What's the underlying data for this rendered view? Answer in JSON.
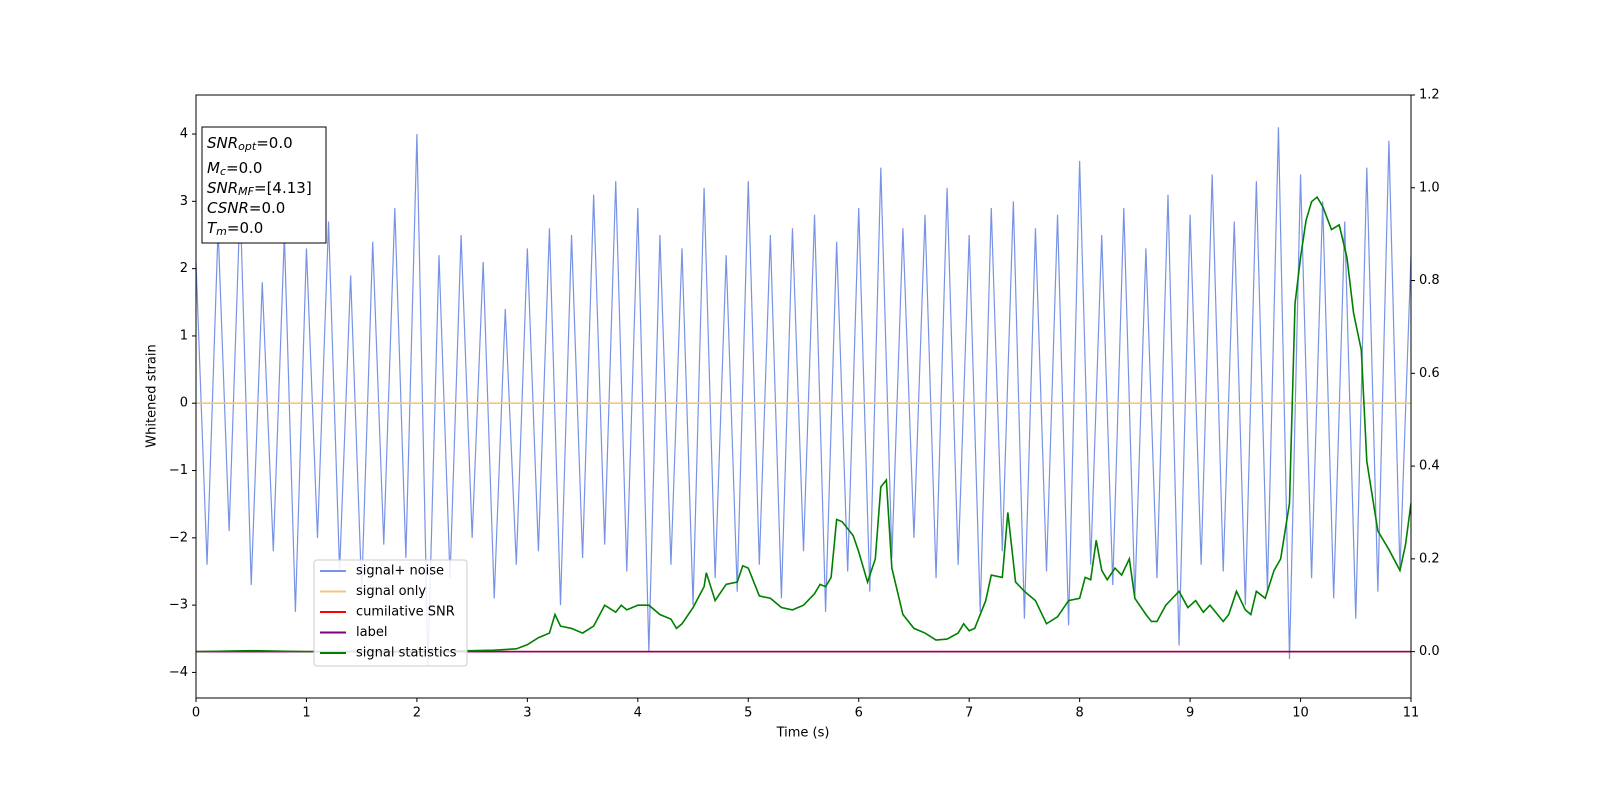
{
  "chart_data": {
    "type": "line",
    "xlabel": "Time (s)",
    "ylabel": "Whitened strain",
    "xlim": [
      0,
      11
    ],
    "ylim": [
      -4.38,
      4.58
    ],
    "y2lim": [
      -0.1,
      1.2
    ],
    "xticks": [
      0,
      1,
      2,
      3,
      4,
      5,
      6,
      7,
      8,
      9,
      10,
      11
    ],
    "yticks": [
      {
        "value": -4,
        "label": "−4"
      },
      {
        "value": -3,
        "label": "−3"
      },
      {
        "value": -2,
        "label": "−2"
      },
      {
        "value": -1,
        "label": "−1"
      },
      0,
      1,
      2,
      3,
      4
    ],
    "y2ticks": [
      {
        "value": 0,
        "label": "0.0"
      },
      {
        "value": 0.2,
        "label": "0.2"
      },
      {
        "value": 0.4,
        "label": "0.4"
      },
      {
        "value": 0.6,
        "label": "0.6"
      },
      {
        "value": 0.8,
        "label": "0.8"
      },
      {
        "value": 1.0,
        "label": "1.0"
      },
      {
        "value": 1.2,
        "label": "1.2"
      }
    ],
    "annotations": [
      {
        "main": "SNR",
        "sub": "opt",
        "rest": "=0.0"
      },
      {
        "main": "M",
        "sub": "c",
        "rest": "=0.0"
      },
      {
        "main": "SNR",
        "sub": "MF",
        "rest": "=[4.13]"
      },
      {
        "main": "CSNR",
        "rest": "=0.0"
      },
      {
        "main": "T",
        "sub": "m",
        "rest": "=0.0"
      }
    ],
    "series": [
      {
        "name": "signal+ noise",
        "color": "#7893e6",
        "x": [
          0,
          0.1,
          0.2,
          0.3,
          0.4,
          0.5,
          0.6,
          0.7,
          0.8,
          0.9,
          1,
          1.1,
          1.2,
          1.3,
          1.4,
          1.5,
          1.6,
          1.7,
          1.8,
          1.9,
          2,
          2.1,
          2.2,
          2.3,
          2.4,
          2.5,
          2.6,
          2.7,
          2.8,
          2.9,
          3,
          3.1,
          3.2,
          3.3,
          3.4,
          3.5,
          3.6,
          3.7,
          3.8,
          3.9,
          4,
          4.1,
          4.2,
          4.3,
          4.4,
          4.5,
          4.6,
          4.7,
          4.8,
          4.9,
          5,
          5.1,
          5.2,
          5.3,
          5.4,
          5.5,
          5.6,
          5.7,
          5.8,
          5.9,
          6,
          6.1,
          6.2,
          6.3,
          6.4,
          6.5,
          6.6,
          6.7,
          6.8,
          6.9,
          7,
          7.1,
          7.2,
          7.3,
          7.4,
          7.5,
          7.6,
          7.7,
          7.8,
          7.9,
          8,
          8.1,
          8.2,
          8.3,
          8.4,
          8.5,
          8.6,
          8.7,
          8.8,
          8.9,
          9,
          9.1,
          9.2,
          9.3,
          9.4,
          9.5,
          9.6,
          9.7,
          9.8,
          9.9,
          10,
          10.1,
          10.2,
          10.3,
          10.4,
          10.5,
          10.6,
          10.7,
          10.8,
          10.9,
          11
        ],
        "values": [
          2.1,
          -2.4,
          2.6,
          -1.9,
          3.0,
          -2.7,
          1.8,
          -2.2,
          2.5,
          -3.1,
          2.3,
          -2.0,
          2.7,
          -2.5,
          1.9,
          -2.8,
          2.4,
          -2.1,
          2.9,
          -2.3,
          4.0,
          -3.9,
          2.2,
          -2.6,
          2.5,
          -2.0,
          2.1,
          -2.9,
          1.4,
          -2.4,
          2.3,
          -2.2,
          2.6,
          -3.0,
          2.5,
          -2.3,
          3.1,
          -2.1,
          3.3,
          -2.5,
          2.9,
          -3.7,
          2.5,
          -2.4,
          2.3,
          -3.0,
          3.2,
          -2.6,
          2.2,
          -2.8,
          3.3,
          -2.4,
          2.5,
          -2.9,
          2.6,
          -2.2,
          2.8,
          -3.1,
          2.4,
          -2.5,
          2.9,
          -2.8,
          3.5,
          -2.3,
          2.6,
          -2.0,
          2.8,
          -2.6,
          3.2,
          -2.4,
          2.5,
          -3.1,
          2.9,
          -2.2,
          3.0,
          -3.2,
          2.6,
          -2.5,
          2.8,
          -3.3,
          3.6,
          -2.4,
          2.5,
          -2.7,
          2.9,
          -2.9,
          2.3,
          -2.6,
          3.1,
          -3.6,
          2.8,
          -2.4,
          3.4,
          -2.5,
          2.7,
          -3.0,
          3.3,
          -2.8,
          4.1,
          -3.8,
          3.4,
          -2.6,
          3.0,
          -2.9,
          2.7,
          -3.2,
          3.5,
          -2.8,
          3.9,
          -2.5,
          2.2
        ]
      },
      {
        "name": "signal only",
        "color": "#f5c57a",
        "x": [
          0,
          11
        ],
        "values": [
          0,
          0
        ]
      },
      {
        "name": "cumilative SNR",
        "color": "#ff0000",
        "axis": "y2",
        "x": [
          0,
          11
        ],
        "values": [
          0,
          0
        ]
      },
      {
        "name": "label",
        "color": "#800080",
        "axis": "y2",
        "x": [
          0,
          11
        ],
        "values": [
          0,
          0
        ]
      },
      {
        "name": "signal statistics",
        "color": "#008000",
        "axis": "y2",
        "x": [
          0,
          0.5,
          1,
          2,
          2.5,
          2.7,
          2.9,
          3,
          3.1,
          3.2,
          3.25,
          3.3,
          3.4,
          3.5,
          3.6,
          3.7,
          3.8,
          3.85,
          3.9,
          4,
          4.1,
          4.2,
          4.3,
          4.35,
          4.4,
          4.5,
          4.6,
          4.62,
          4.7,
          4.8,
          4.9,
          4.95,
          5,
          5.1,
          5.2,
          5.3,
          5.4,
          5.5,
          5.6,
          5.65,
          5.7,
          5.75,
          5.8,
          5.85,
          5.95,
          6,
          6.08,
          6.15,
          6.2,
          6.25,
          6.3,
          6.4,
          6.5,
          6.6,
          6.7,
          6.8,
          6.9,
          6.95,
          7,
          7.05,
          7.15,
          7.2,
          7.3,
          7.35,
          7.42,
          7.5,
          7.6,
          7.7,
          7.8,
          7.9,
          8,
          8.05,
          8.1,
          8.15,
          8.2,
          8.25,
          8.32,
          8.38,
          8.45,
          8.5,
          8.6,
          8.65,
          8.7,
          8.78,
          8.9,
          8.98,
          9.05,
          9.12,
          9.18,
          9.3,
          9.35,
          9.42,
          9.5,
          9.55,
          9.6,
          9.68,
          9.76,
          9.82,
          9.9,
          9.95,
          10,
          10.05,
          10.1,
          10.15,
          10.2,
          10.28,
          10.35,
          10.42,
          10.48,
          10.55,
          10.6,
          10.7,
          10.8,
          10.9,
          10.95,
          11
        ],
        "values": [
          0,
          0.002,
          0,
          0,
          0.002,
          0.003,
          0.006,
          0.015,
          0.03,
          0.04,
          0.08,
          0.055,
          0.05,
          0.04,
          0.055,
          0.1,
          0.085,
          0.1,
          0.09,
          0.1,
          0.1,
          0.08,
          0.07,
          0.05,
          0.06,
          0.095,
          0.14,
          0.17,
          0.11,
          0.145,
          0.15,
          0.185,
          0.18,
          0.12,
          0.115,
          0.095,
          0.09,
          0.1,
          0.125,
          0.145,
          0.14,
          0.16,
          0.285,
          0.28,
          0.25,
          0.215,
          0.15,
          0.2,
          0.355,
          0.37,
          0.18,
          0.08,
          0.05,
          0.04,
          0.025,
          0.027,
          0.04,
          0.06,
          0.045,
          0.05,
          0.11,
          0.165,
          0.16,
          0.3,
          0.15,
          0.13,
          0.11,
          0.06,
          0.075,
          0.11,
          0.115,
          0.16,
          0.155,
          0.24,
          0.175,
          0.155,
          0.18,
          0.165,
          0.2,
          0.115,
          0.08,
          0.065,
          0.065,
          0.1,
          0.13,
          0.095,
          0.11,
          0.085,
          0.1,
          0.065,
          0.08,
          0.13,
          0.09,
          0.08,
          0.13,
          0.115,
          0.175,
          0.2,
          0.32,
          0.75,
          0.85,
          0.93,
          0.97,
          0.98,
          0.96,
          0.91,
          0.92,
          0.85,
          0.73,
          0.65,
          0.41,
          0.26,
          0.22,
          0.175,
          0.23,
          0.32
        ]
      }
    ]
  }
}
